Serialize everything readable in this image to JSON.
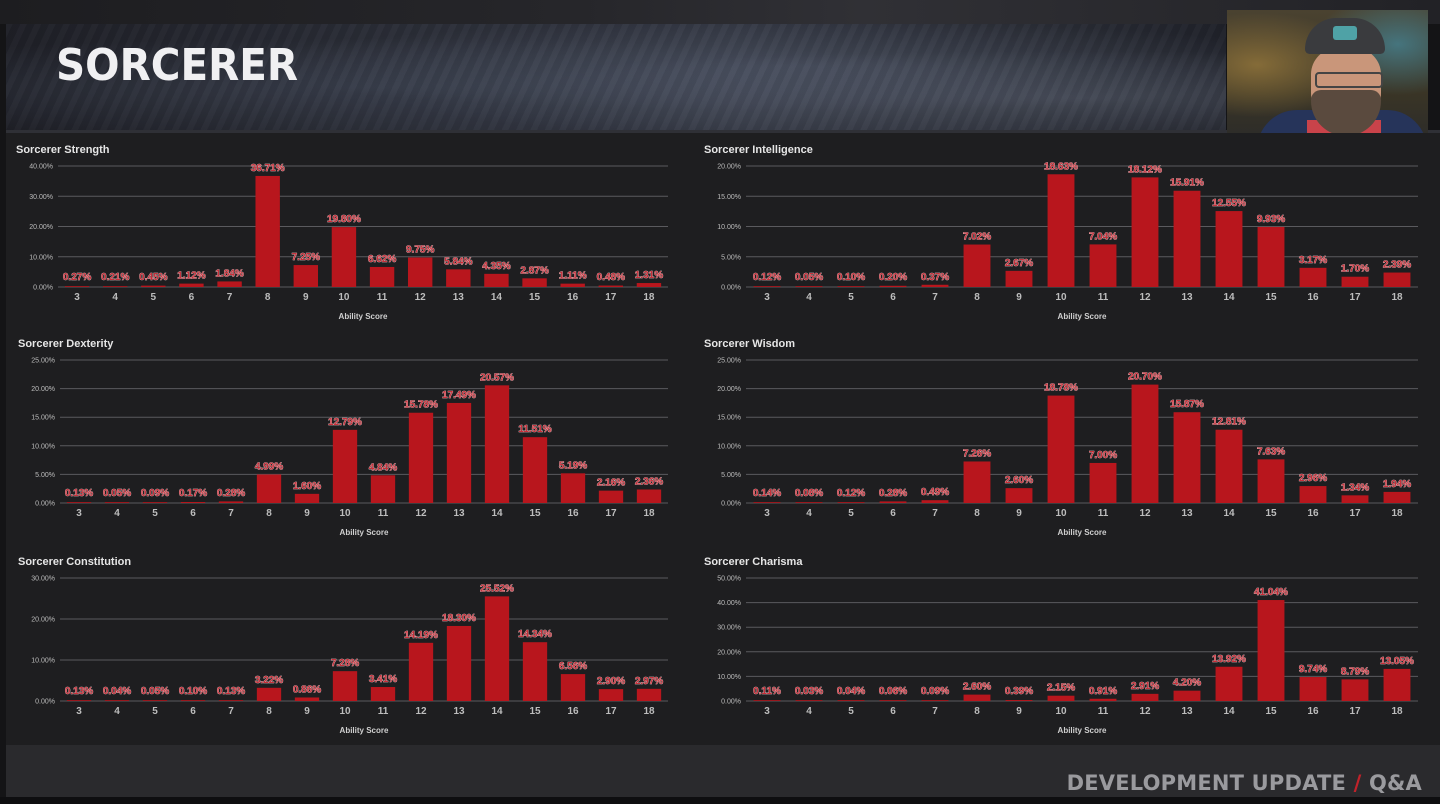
{
  "header": {
    "title": "SORCERER"
  },
  "footer": {
    "left": "DEVELOPMENT UPDATE",
    "separator": "/",
    "right": "Q&A"
  },
  "colors": {
    "bar": "#b8161d",
    "label_fill": "#c5303a",
    "label_stroke": "#f2d7d9",
    "grid": "#5a5a5e",
    "text": "#e6e6e6",
    "tick": "#bdbdbd",
    "footer_accent": "#c0222a"
  },
  "chart_data": [
    {
      "type": "bar",
      "title": "Sorcerer Strength",
      "xlabel": "Ability Score",
      "ylabel": "",
      "ylim": [
        0,
        40
      ],
      "yticks": [
        "0.00%",
        "10.00%",
        "20.00%",
        "30.00%",
        "40.00%"
      ],
      "categories": [
        "3",
        "4",
        "5",
        "6",
        "7",
        "8",
        "9",
        "10",
        "11",
        "12",
        "13",
        "14",
        "15",
        "16",
        "17",
        "18"
      ],
      "values": [
        0.27,
        0.21,
        0.45,
        1.12,
        1.84,
        36.71,
        7.25,
        19.8,
        6.62,
        9.75,
        5.84,
        4.35,
        2.87,
        1.11,
        0.48,
        1.31
      ],
      "labels": [
        "0.27%",
        "0.21%",
        "0.45%",
        "1.12%",
        "1.84%",
        "36.71%",
        "7.25%",
        "19.80%",
        "6.62%",
        "9.75%",
        "5.84%",
        "4.35%",
        "2.87%",
        "1.11%",
        "0.48%",
        "1.31%"
      ],
      "grid": true,
      "legend": "none"
    },
    {
      "type": "bar",
      "title": "Sorcerer Intelligence",
      "xlabel": "Ability Score",
      "ylabel": "",
      "ylim": [
        0,
        20
      ],
      "yticks": [
        "0.00%",
        "5.00%",
        "10.00%",
        "15.00%",
        "20.00%"
      ],
      "categories": [
        "3",
        "4",
        "5",
        "6",
        "7",
        "8",
        "9",
        "10",
        "11",
        "12",
        "13",
        "14",
        "15",
        "16",
        "17",
        "18"
      ],
      "values": [
        0.12,
        0.05,
        0.1,
        0.2,
        0.37,
        7.02,
        2.67,
        18.63,
        7.04,
        18.12,
        15.91,
        12.55,
        9.93,
        3.17,
        1.7,
        2.39
      ],
      "labels": [
        "0.12%",
        "0.05%",
        "0.10%",
        "0.20%",
        "0.37%",
        "7.02%",
        "2.67%",
        "18.63%",
        "7.04%",
        "18.12%",
        "15.91%",
        "12.55%",
        "9.93%",
        "3.17%",
        "1.70%",
        "2.39%"
      ],
      "grid": true,
      "legend": "none"
    },
    {
      "type": "bar",
      "title": "Sorcerer Dexterity",
      "xlabel": "Ability Score",
      "ylabel": "",
      "ylim": [
        0,
        25
      ],
      "yticks": [
        "0.00%",
        "5.00%",
        "10.00%",
        "15.00%",
        "20.00%",
        "25.00%"
      ],
      "categories": [
        "3",
        "4",
        "5",
        "6",
        "7",
        "8",
        "9",
        "10",
        "11",
        "12",
        "13",
        "14",
        "15",
        "16",
        "17",
        "18"
      ],
      "values": [
        0.13,
        0.05,
        0.09,
        0.17,
        0.28,
        4.99,
        1.6,
        12.79,
        4.84,
        15.78,
        17.49,
        20.57,
        11.51,
        5.19,
        2.16,
        2.36
      ],
      "labels": [
        "0.13%",
        "0.05%",
        "0.09%",
        "0.17%",
        "0.28%",
        "4.99%",
        "1.60%",
        "12.79%",
        "4.84%",
        "15.78%",
        "17.49%",
        "20.57%",
        "11.51%",
        "5.19%",
        "2.16%",
        "2.36%"
      ],
      "grid": true,
      "legend": "none"
    },
    {
      "type": "bar",
      "title": "Sorcerer Wisdom",
      "xlabel": "Ability Score",
      "ylabel": "",
      "ylim": [
        0,
        25
      ],
      "yticks": [
        "0.00%",
        "5.00%",
        "10.00%",
        "15.00%",
        "20.00%",
        "25.00%"
      ],
      "categories": [
        "3",
        "4",
        "5",
        "6",
        "7",
        "8",
        "9",
        "10",
        "11",
        "12",
        "13",
        "14",
        "15",
        "16",
        "17",
        "18"
      ],
      "values": [
        0.14,
        0.08,
        0.12,
        0.28,
        0.49,
        7.26,
        2.6,
        18.78,
        7.0,
        20.7,
        15.87,
        12.81,
        7.63,
        2.96,
        1.34,
        1.94
      ],
      "labels": [
        "0.14%",
        "0.08%",
        "0.12%",
        "0.28%",
        "0.49%",
        "7.26%",
        "2.60%",
        "18.78%",
        "7.00%",
        "20.70%",
        "15.87%",
        "12.81%",
        "7.63%",
        "2.96%",
        "1.34%",
        "1.94%"
      ],
      "grid": true,
      "legend": "none"
    },
    {
      "type": "bar",
      "title": "Sorcerer Constitution",
      "xlabel": "Ability Score",
      "ylabel": "",
      "ylim": [
        0,
        30
      ],
      "yticks": [
        "0.00%",
        "10.00%",
        "20.00%",
        "30.00%"
      ],
      "categories": [
        "3",
        "4",
        "5",
        "6",
        "7",
        "8",
        "9",
        "10",
        "11",
        "12",
        "13",
        "14",
        "15",
        "16",
        "17",
        "18"
      ],
      "values": [
        0.13,
        0.04,
        0.05,
        0.1,
        0.13,
        3.22,
        0.86,
        7.28,
        3.41,
        14.19,
        18.3,
        25.52,
        14.34,
        6.56,
        2.9,
        2.97
      ],
      "labels": [
        "0.13%",
        "0.04%",
        "0.05%",
        "0.10%",
        "0.13%",
        "3.22%",
        "0.86%",
        "7.28%",
        "3.41%",
        "14.19%",
        "18.30%",
        "25.52%",
        "14.34%",
        "6.56%",
        "2.90%",
        "2.97%"
      ],
      "grid": true,
      "legend": "none"
    },
    {
      "type": "bar",
      "title": "Sorcerer Charisma",
      "xlabel": "Ability Score",
      "ylabel": "",
      "ylim": [
        0,
        50
      ],
      "yticks": [
        "0.00%",
        "10.00%",
        "20.00%",
        "30.00%",
        "40.00%",
        "50.00%"
      ],
      "categories": [
        "3",
        "4",
        "5",
        "6",
        "7",
        "8",
        "9",
        "10",
        "11",
        "12",
        "13",
        "14",
        "15",
        "16",
        "17",
        "18"
      ],
      "values": [
        0.11,
        0.03,
        0.04,
        0.06,
        0.09,
        2.6,
        0.39,
        2.15,
        0.91,
        2.91,
        4.2,
        13.92,
        41.04,
        9.74,
        8.79,
        13.05
      ],
      "labels": [
        "0.11%",
        "0.03%",
        "0.04%",
        "0.06%",
        "0.09%",
        "2.60%",
        "0.39%",
        "2.15%",
        "0.91%",
        "2.91%",
        "4.20%",
        "13.92%",
        "41.04%",
        "9.74%",
        "8.79%",
        "13.05%"
      ],
      "grid": true,
      "legend": "none"
    }
  ]
}
